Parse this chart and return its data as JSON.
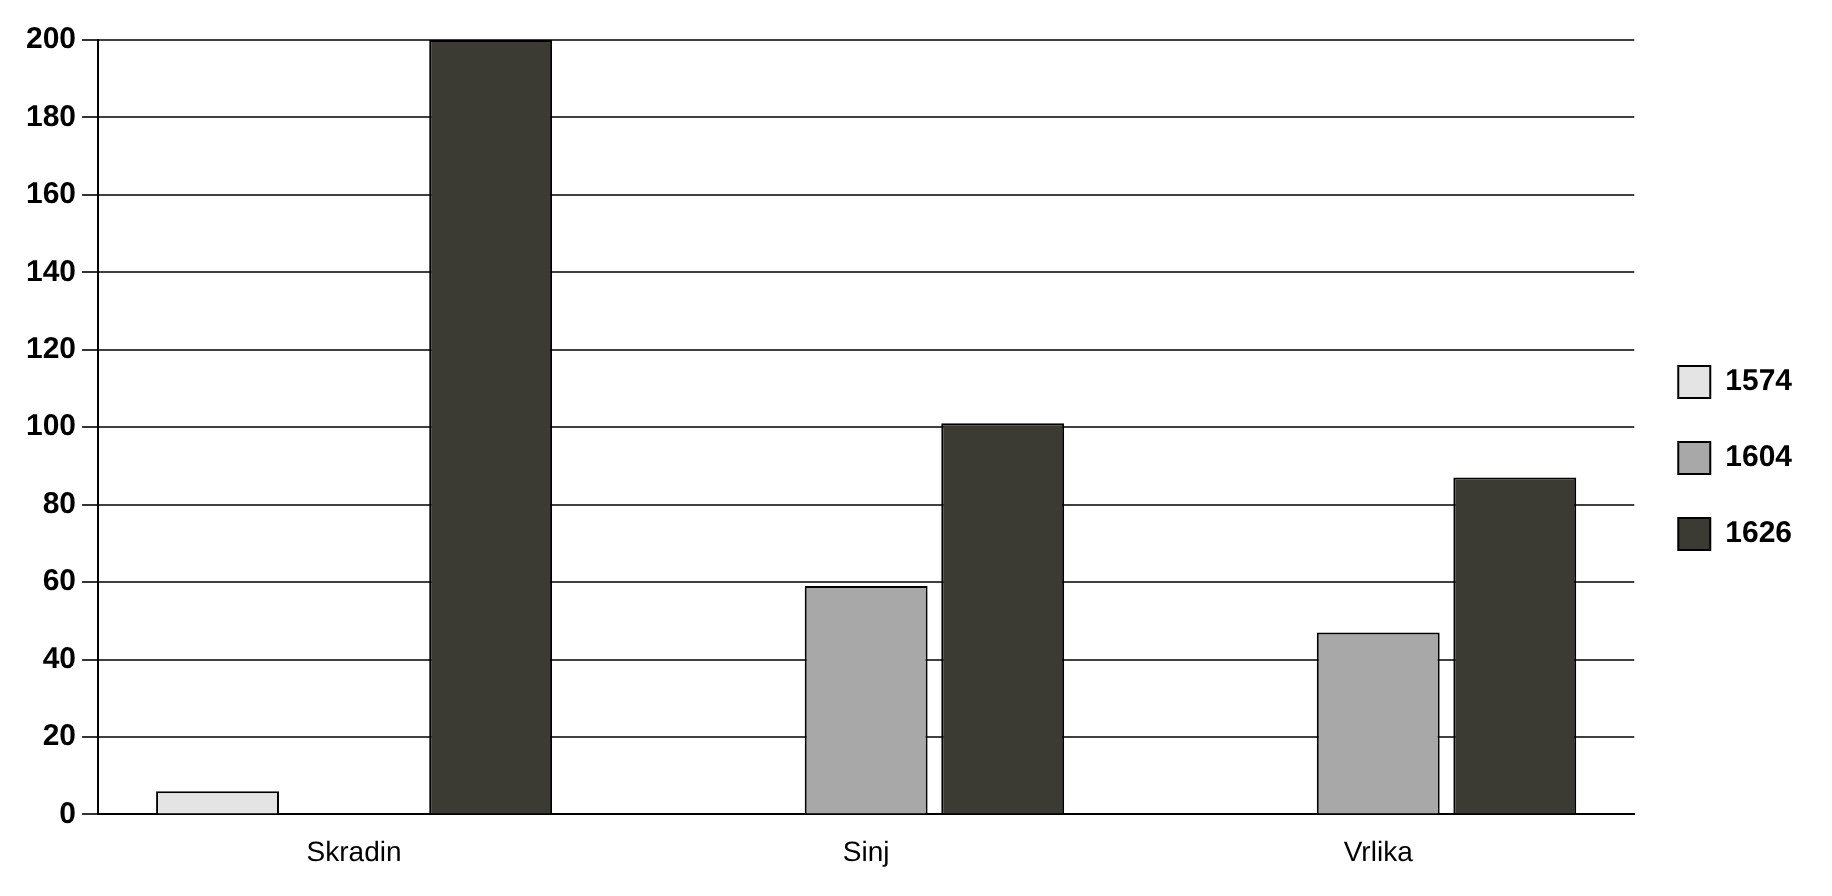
{
  "chart_data": {
    "type": "bar",
    "categories": [
      "Skradin",
      "Sinj",
      "Vrlika"
    ],
    "series": [
      {
        "name": "1574",
        "color": "#e4e4e4",
        "values": [
          6,
          null,
          null
        ]
      },
      {
        "name": "1604",
        "color": "#a8a8a8",
        "values": [
          null,
          59,
          47
        ]
      },
      {
        "name": "1626",
        "color": "#3b3b33",
        "values": [
          200,
          101,
          87
        ]
      }
    ],
    "ylim": [
      0,
      200
    ],
    "yticks": [
      0,
      20,
      40,
      60,
      80,
      100,
      120,
      140,
      160,
      180,
      200
    ],
    "grid": "y",
    "legend": "right"
  }
}
